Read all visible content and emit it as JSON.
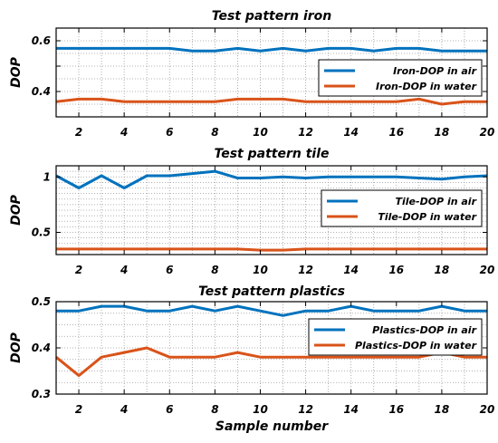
{
  "chart_data": [
    {
      "type": "line",
      "title": "Test pattern iron",
      "xlabel": "",
      "ylabel": "DOP",
      "xlim": [
        1,
        20
      ],
      "ylim": [
        0.3,
        0.65
      ],
      "yticks": [
        0.4,
        0.5,
        0.6
      ],
      "ytick_labels": [
        "0.4",
        "",
        "0.6"
      ],
      "xticks": [
        2,
        4,
        6,
        8,
        10,
        12,
        14,
        16,
        18,
        20
      ],
      "grid": true,
      "legend_position": "right",
      "x": [
        1,
        2,
        3,
        4,
        5,
        6,
        7,
        8,
        9,
        10,
        11,
        12,
        13,
        14,
        15,
        16,
        17,
        18,
        19,
        20
      ],
      "series": [
        {
          "name": "Iron-DOP in air",
          "color": "#0072BD",
          "values": [
            0.57,
            0.57,
            0.57,
            0.57,
            0.57,
            0.57,
            0.56,
            0.56,
            0.57,
            0.56,
            0.57,
            0.56,
            0.57,
            0.57,
            0.56,
            0.57,
            0.57,
            0.56,
            0.56,
            0.56
          ]
        },
        {
          "name": "Iron-DOP in water",
          "color": "#D95319",
          "values": [
            0.36,
            0.37,
            0.37,
            0.36,
            0.36,
            0.36,
            0.36,
            0.36,
            0.37,
            0.37,
            0.37,
            0.36,
            0.36,
            0.36,
            0.36,
            0.36,
            0.37,
            0.35,
            0.36,
            0.36
          ]
        }
      ]
    },
    {
      "type": "line",
      "title": "Test pattern tile",
      "xlabel": "",
      "ylabel": "DOP",
      "xlim": [
        1,
        20
      ],
      "ylim": [
        0.3,
        1.1
      ],
      "yticks": [
        0.5,
        1.0
      ],
      "ytick_labels": [
        "0.5",
        "1"
      ],
      "xticks": [
        2,
        4,
        6,
        8,
        10,
        12,
        14,
        16,
        18,
        20
      ],
      "grid": true,
      "legend_position": "right",
      "x": [
        1,
        2,
        3,
        4,
        5,
        6,
        7,
        8,
        9,
        10,
        11,
        12,
        13,
        14,
        15,
        16,
        17,
        18,
        19,
        20
      ],
      "series": [
        {
          "name": "Tile-DOP in air",
          "color": "#0072BD",
          "values": [
            1.01,
            0.9,
            1.01,
            0.9,
            1.01,
            1.01,
            1.03,
            1.05,
            0.99,
            0.99,
            1.0,
            0.99,
            1.0,
            1.0,
            1.0,
            1.0,
            0.99,
            0.98,
            1.0,
            1.01
          ]
        },
        {
          "name": "Tile-DOP in water",
          "color": "#D95319",
          "values": [
            0.35,
            0.35,
            0.35,
            0.35,
            0.35,
            0.35,
            0.35,
            0.35,
            0.35,
            0.34,
            0.34,
            0.35,
            0.35,
            0.35,
            0.35,
            0.35,
            0.35,
            0.35,
            0.35,
            0.35
          ]
        }
      ]
    },
    {
      "type": "line",
      "title": "Test pattern plastics",
      "xlabel": "Sample number",
      "ylabel": "DOP",
      "xlim": [
        1,
        20
      ],
      "ylim": [
        0.3,
        0.5
      ],
      "yticks": [
        0.3,
        0.4,
        0.5
      ],
      "ytick_labels": [
        "0.3",
        "0.4",
        "0.5"
      ],
      "xticks": [
        2,
        4,
        6,
        8,
        10,
        12,
        14,
        16,
        18,
        20
      ],
      "grid": true,
      "legend_position": "top-right",
      "x": [
        1,
        2,
        3,
        4,
        5,
        6,
        7,
        8,
        9,
        10,
        11,
        12,
        13,
        14,
        15,
        16,
        17,
        18,
        19,
        20
      ],
      "series": [
        {
          "name": "Plastics-DOP in air",
          "color": "#0072BD",
          "values": [
            0.48,
            0.48,
            0.49,
            0.49,
            0.48,
            0.48,
            0.49,
            0.48,
            0.49,
            0.48,
            0.47,
            0.48,
            0.48,
            0.49,
            0.48,
            0.48,
            0.48,
            0.49,
            0.48,
            0.48
          ]
        },
        {
          "name": "Plastics-DOP in water",
          "color": "#D95319",
          "values": [
            0.38,
            0.34,
            0.38,
            0.39,
            0.4,
            0.38,
            0.38,
            0.38,
            0.39,
            0.38,
            0.38,
            0.38,
            0.38,
            0.38,
            0.38,
            0.38,
            0.38,
            0.39,
            0.38,
            0.38
          ]
        }
      ]
    }
  ]
}
